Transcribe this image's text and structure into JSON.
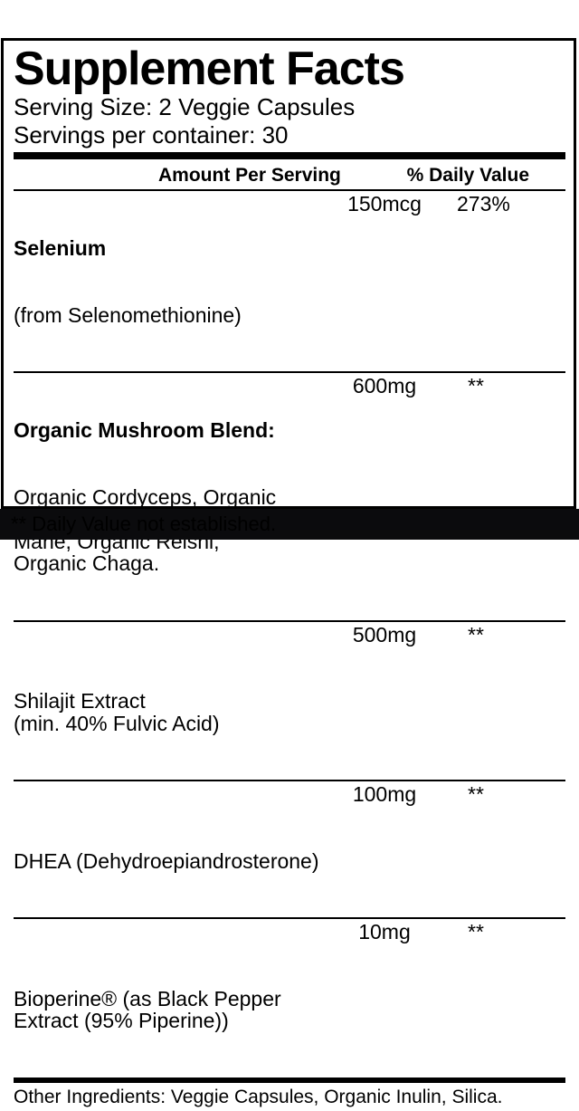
{
  "label": {
    "title": "Supplement Facts",
    "serving_size": "Serving Size: 2 Veggie Capsules",
    "servings_per_container": "Servings per container: 30",
    "table": {
      "amount_header": "Amount Per Serving",
      "dv_header": "% Daily Value",
      "rows": [
        {
          "bold_name": "Selenium",
          "name": "(from Selenomethionine)",
          "amount": "150mcg",
          "daily_value": "273%"
        },
        {
          "bold_name": "Organic Mushroom Blend:",
          "name": "Organic Cordyceps, Organic\nTurkey Tail, Organic Lion's\nMane, Organic Reishi,\nOrganic Chaga.",
          "amount": "600mg",
          "daily_value": "**"
        },
        {
          "bold_name": "",
          "name": "Shilajit Extract\n(min. 40% Fulvic Acid)",
          "amount": "500mg",
          "daily_value": "**"
        },
        {
          "bold_name": "",
          "name": "DHEA (Dehydroepiandrosterone)",
          "amount": "100mg",
          "daily_value": "**"
        },
        {
          "bold_name": "",
          "name": "Bioperine® (as Black Pepper\nExtract (95% Piperine))",
          "amount": "10mg",
          "daily_value": "**"
        }
      ]
    },
    "other_ingredients": "Other Ingredients: Veggie Capsules, Organic Inulin, Silica.",
    "footnote": "** Daily Value not established."
  },
  "colors": {
    "text": "#000000",
    "panel_background": "#ffffff",
    "border": "#000000",
    "footnote_band_background": "#0b0b0d"
  }
}
